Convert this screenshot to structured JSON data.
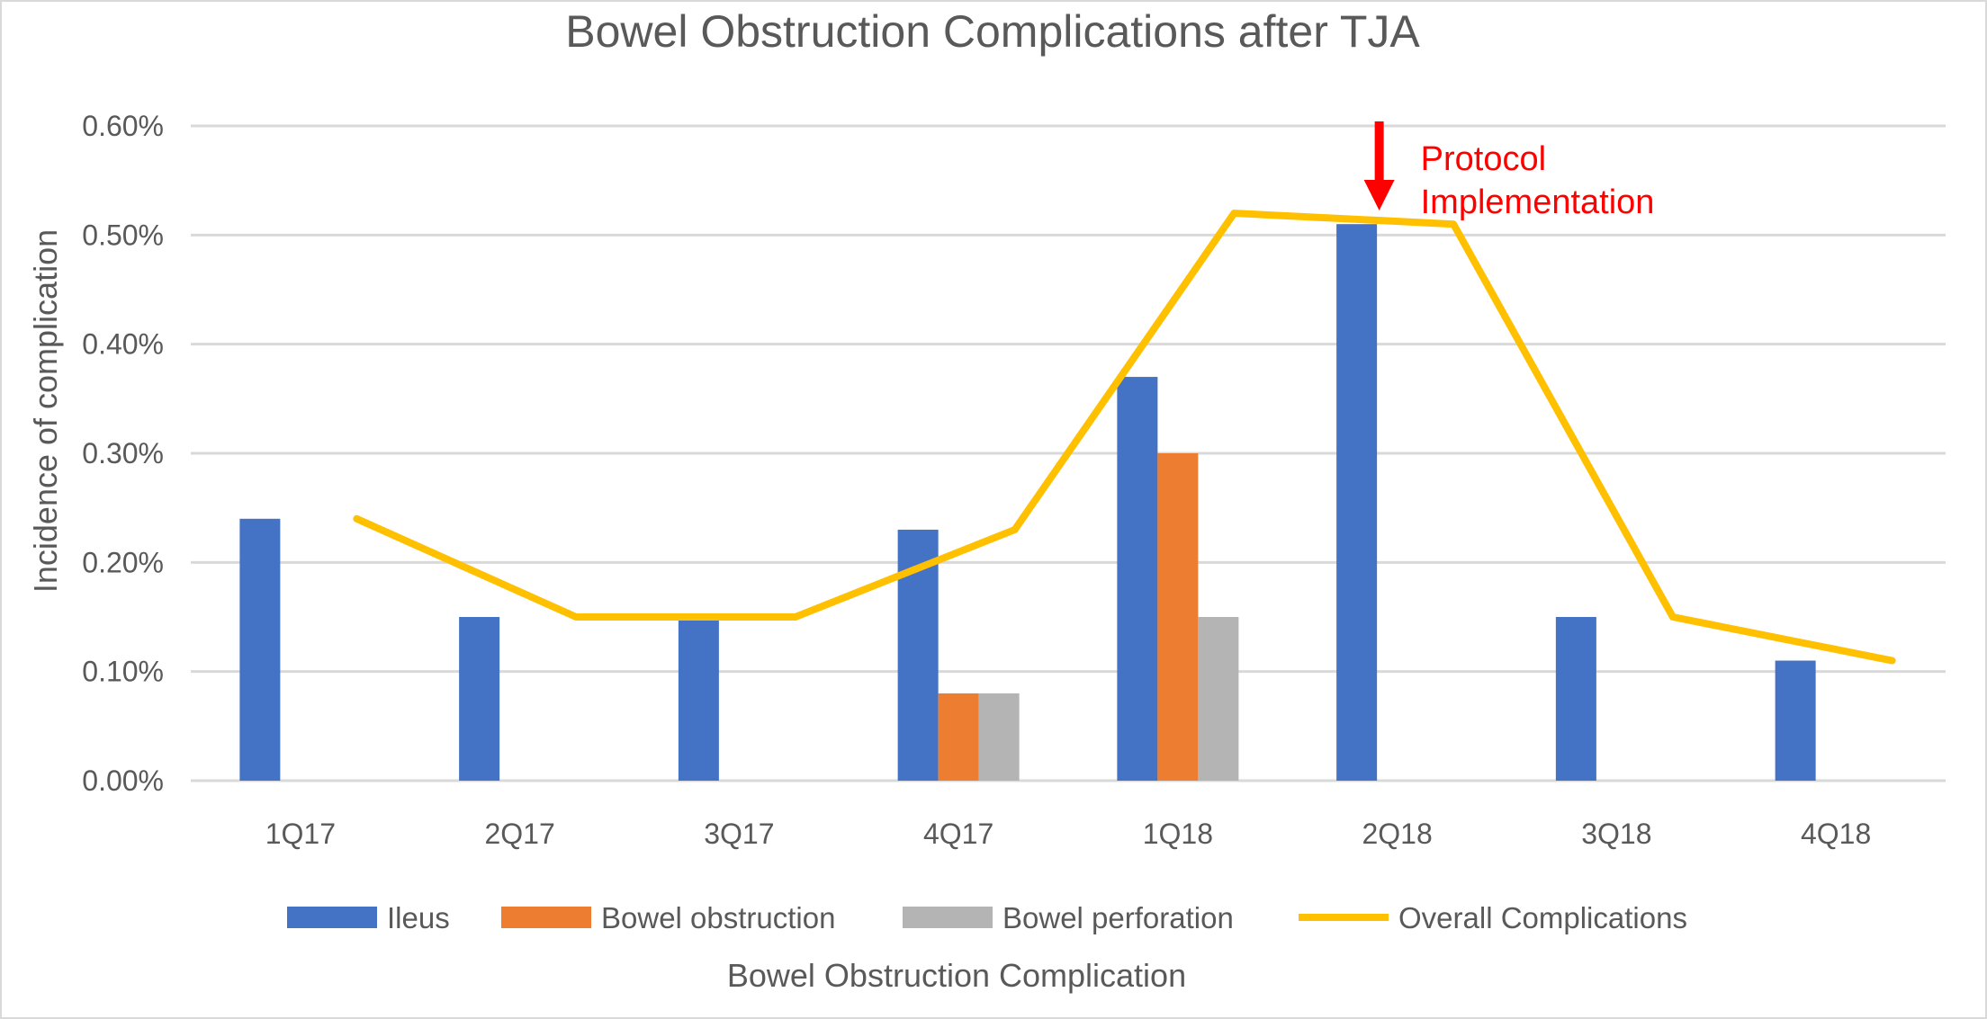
{
  "chart_data": {
    "type": "bar",
    "title": "Bowel Obstruction Complications after TJA",
    "xlabel": "Bowel Obstruction Complication",
    "ylabel": "Incidence of complication",
    "categories": [
      "1Q17",
      "2Q17",
      "3Q17",
      "4Q17",
      "1Q18",
      "2Q18",
      "3Q18",
      "4Q18"
    ],
    "ylim": [
      0,
      0.6
    ],
    "yticks": [
      "0.00%",
      "0.10%",
      "0.20%",
      "0.30%",
      "0.40%",
      "0.50%",
      "0.60%"
    ],
    "grid": true,
    "legend_position": "bottom",
    "series": [
      {
        "name": "Ileus",
        "kind": "bar",
        "color": "#4472c4",
        "values": [
          0.24,
          0.15,
          0.15,
          0.23,
          0.37,
          0.51,
          0.15,
          0.11
        ]
      },
      {
        "name": "Bowel obstruction",
        "kind": "bar",
        "color": "#ed7d31",
        "values": [
          0,
          0,
          0,
          0.08,
          0.3,
          0,
          0,
          0
        ]
      },
      {
        "name": "Bowel perforation",
        "kind": "bar",
        "color": "#b4b4b4",
        "values": [
          0,
          0,
          0,
          0.08,
          0.15,
          0,
          0,
          0
        ]
      },
      {
        "name": "Overall Complications",
        "kind": "line",
        "color": "#ffc000",
        "values": [
          0.24,
          0.15,
          0.15,
          0.23,
          0.52,
          0.51,
          0.15,
          0.11
        ]
      }
    ],
    "annotation": {
      "lines": [
        "Protocol",
        "Implementation"
      ],
      "category": "2Q18",
      "color": "#ff0000"
    }
  }
}
